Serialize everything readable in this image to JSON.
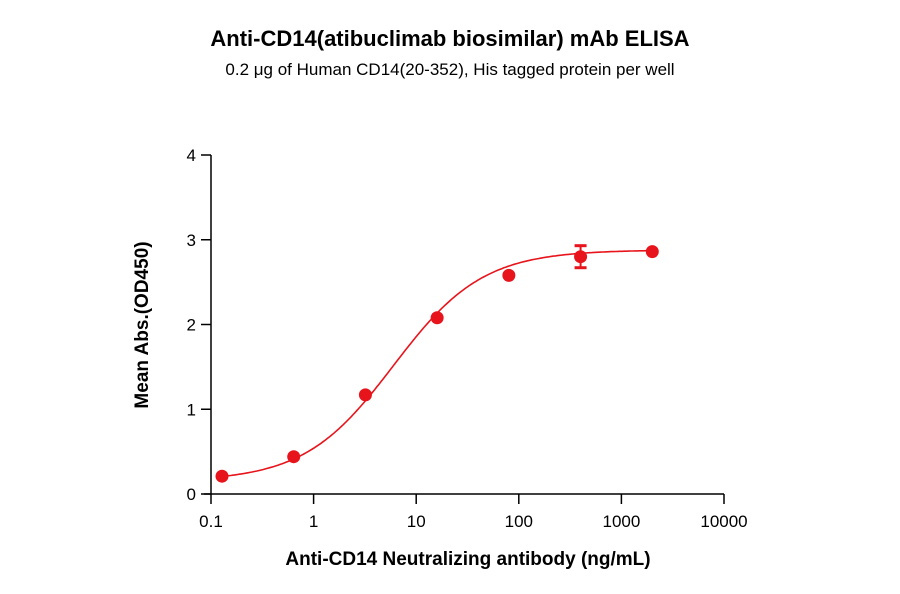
{
  "chart_data": {
    "type": "scatter",
    "title": "Anti-CD14(atibuclimab biosimilar) mAb ELISA",
    "subtitle": "0.2 μg of Human CD14(20-352), His tagged protein per well",
    "xlabel": "Anti-CD14 Neutralizing antibody (ng/mL)",
    "ylabel": "Mean Abs.(OD450)",
    "xscale": "log",
    "xlim": [
      0.1,
      10000
    ],
    "ylim": [
      0,
      4
    ],
    "xticks": [
      "0.1",
      "1",
      "10",
      "100",
      "1000",
      "10000"
    ],
    "yticks": [
      "0",
      "1",
      "2",
      "3",
      "4"
    ],
    "grid": false,
    "color": "#e8141b",
    "points": [
      {
        "x": 0.128,
        "y": 0.21,
        "err": 0
      },
      {
        "x": 0.64,
        "y": 0.44,
        "err": 0
      },
      {
        "x": 3.2,
        "y": 1.17,
        "err": 0
      },
      {
        "x": 16,
        "y": 2.08,
        "err": 0
      },
      {
        "x": 80,
        "y": 2.58,
        "err": 0
      },
      {
        "x": 400,
        "y": 2.8,
        "err": 0.13
      },
      {
        "x": 2000,
        "y": 2.86,
        "err": 0
      }
    ],
    "fit": "sigmoidal curve"
  }
}
